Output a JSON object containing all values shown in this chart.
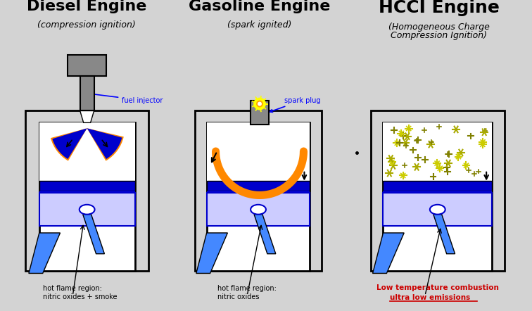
{
  "bg_color": "#d3d3d3",
  "white": "#ffffff",
  "black": "#000000",
  "blue_dark": "#0000cc",
  "blue_mid": "#3333ff",
  "blue_light": "#aaaaff",
  "blue_very_light": "#ccccff",
  "blue_piston": "#4488ff",
  "gray_engine": "#888888",
  "orange_flame": "#ff8800",
  "title1": "Diesel Engine",
  "sub1": "(compression ignition)",
  "title2": "Gasoline Engine",
  "sub2": "(spark ignited)",
  "title3": "HCCI Engine",
  "sub3_line1": "(Homogeneous Charge",
  "sub3_line2": "Compression Ignition)",
  "label_injector": "fuel injector",
  "label_spark": "spark plug",
  "label_hot1": "hot flame region:",
  "label_nox_smoke": "nitric oxides + smoke",
  "label_hot2": "hot flame region:",
  "label_nox": "nitric oxides",
  "label_low_temp": "Low temperature combustion",
  "label_ultra": "ultra low emissions",
  "red": "#cc0000"
}
